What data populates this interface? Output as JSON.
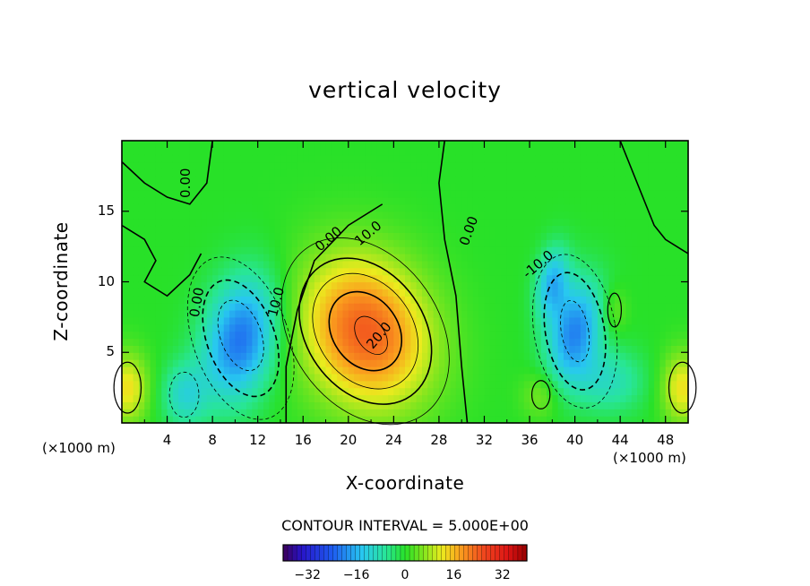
{
  "chart_data": {
    "type": "heatmap",
    "title": "vertical velocity",
    "xlabel": "X-coordinate",
    "ylabel": "Z-coordinate",
    "x_unit": "(×1000 m)",
    "y_unit": "(×1000 m)",
    "xlim": [
      0,
      50
    ],
    "ylim": [
      0,
      20
    ],
    "x_ticks": [
      4,
      8,
      12,
      16,
      20,
      24,
      28,
      32,
      36,
      40,
      44,
      48
    ],
    "x_tick_labels": [
      "4",
      "8",
      "12",
      "16",
      "20",
      "24",
      "28",
      "32",
      "36",
      "40",
      "44",
      "48"
    ],
    "y_ticks": [
      5,
      10,
      15
    ],
    "y_tick_labels": [
      "5",
      "10",
      "15"
    ],
    "contour_interval_label": "CONTOUR INTERVAL = 5.000E+00",
    "contour_labels": [
      "0.00",
      "10.0",
      "20.0",
      "-10.0"
    ],
    "colorbar": {
      "min": -40,
      "max": 40,
      "ticks": [
        -32,
        -16,
        0,
        16,
        32
      ],
      "tick_labels": [
        "−32",
        "−16",
        "0",
        "16",
        "32"
      ]
    },
    "features": [
      {
        "type": "updraft",
        "x": 21.5,
        "z": 6.5,
        "peak": 24
      },
      {
        "type": "downdraft",
        "x": 10.5,
        "z": 6,
        "peak": -22
      },
      {
        "type": "downdraft",
        "x": 40,
        "z": 6.5,
        "peak": -20
      },
      {
        "type": "downdraft",
        "x": 38,
        "z": 10,
        "peak": -15
      },
      {
        "type": "updraft",
        "x": 0.5,
        "z": 2.5,
        "peak": 13
      },
      {
        "type": "updraft",
        "x": 49.5,
        "z": 2.5,
        "peak": 13
      }
    ]
  }
}
